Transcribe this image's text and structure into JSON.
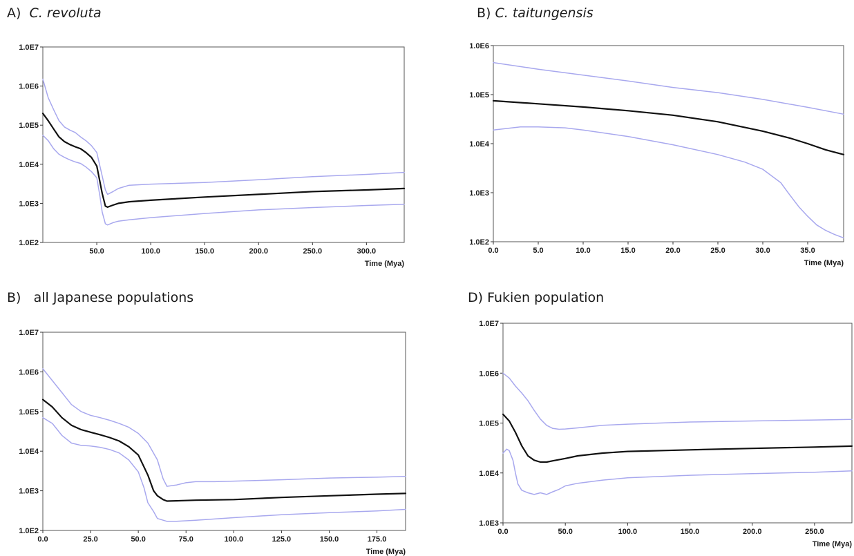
{
  "chart_data": [
    {
      "id": "A",
      "type": "line",
      "title_prefix": "A)",
      "title_species": "C. revoluta",
      "xlabel": "Time (Mya)",
      "ylabel": "",
      "y_scale": "log",
      "xlim": [
        0,
        335
      ],
      "ylim": [
        100,
        10000000
      ],
      "x_ticks": [
        50,
        100,
        150,
        200,
        250,
        300
      ],
      "x_tick_labels": [
        "50.0",
        "100.0",
        "150.0",
        "200.0",
        "250.0",
        "300.0"
      ],
      "y_ticks": [
        100,
        1000,
        10000,
        100000,
        1000000,
        10000000
      ],
      "y_tick_labels": [
        "1.0E2",
        "1.0E3",
        "1.0E4",
        "1.0E5",
        "1.0E6",
        "1.0E7"
      ],
      "grid": false,
      "series": [
        {
          "role": "upper",
          "color": "#a8a8ee",
          "x": [
            0,
            5,
            10,
            15,
            20,
            25,
            30,
            35,
            40,
            45,
            50,
            55,
            58,
            60,
            65,
            70,
            80,
            100,
            150,
            200,
            250,
            300,
            335
          ],
          "y": [
            1500000,
            500000,
            250000,
            130000,
            90000,
            75000,
            65000,
            50000,
            40000,
            30000,
            20000,
            5000,
            2200,
            1700,
            2000,
            2400,
            2900,
            3100,
            3400,
            4000,
            4800,
            5500,
            6200
          ]
        },
        {
          "role": "median",
          "color": "#111111",
          "x": [
            0,
            5,
            10,
            15,
            20,
            25,
            30,
            35,
            40,
            45,
            50,
            53,
            55,
            58,
            60,
            65,
            70,
            80,
            100,
            150,
            200,
            250,
            300,
            335
          ],
          "y": [
            200000,
            130000,
            80000,
            50000,
            38000,
            32000,
            28000,
            25000,
            20000,
            15000,
            9000,
            3500,
            1800,
            850,
            800,
            900,
            1000,
            1100,
            1200,
            1450,
            1700,
            2000,
            2200,
            2400
          ]
        },
        {
          "role": "lower",
          "color": "#a8a8ee",
          "x": [
            0,
            5,
            10,
            15,
            20,
            25,
            30,
            35,
            40,
            45,
            50,
            53,
            55,
            58,
            60,
            65,
            70,
            80,
            100,
            150,
            200,
            250,
            300,
            335
          ],
          "y": [
            55000,
            40000,
            25000,
            18000,
            15000,
            13000,
            11500,
            10500,
            8500,
            6500,
            4500,
            1500,
            600,
            300,
            280,
            320,
            350,
            380,
            430,
            550,
            680,
            780,
            880,
            950
          ]
        }
      ]
    },
    {
      "id": "B1",
      "type": "line",
      "title_prefix": "B)",
      "title_species": "C. taitungensis",
      "xlabel": "Time (Mya)",
      "ylabel": "",
      "y_scale": "log",
      "xlim": [
        0,
        39
      ],
      "ylim": [
        100,
        1000000
      ],
      "x_ticks": [
        0,
        5,
        10,
        15,
        20,
        25,
        30,
        35
      ],
      "x_tick_labels": [
        "0.0",
        "5.0",
        "10.0",
        "15.0",
        "20.0",
        "25.0",
        "30.0",
        "35.0"
      ],
      "y_ticks": [
        100,
        1000,
        10000,
        100000,
        1000000
      ],
      "y_tick_labels": [
        "1.0E2",
        "1.0E3",
        "1.0E4",
        "1.0E5",
        "1.0E6"
      ],
      "grid": false,
      "series": [
        {
          "role": "upper",
          "color": "#a8a8ee",
          "x": [
            0,
            5,
            10,
            15,
            20,
            25,
            30,
            35,
            39
          ],
          "y": [
            450000,
            330000,
            250000,
            190000,
            140000,
            110000,
            80000,
            55000,
            40000
          ]
        },
        {
          "role": "median",
          "color": "#111111",
          "x": [
            0,
            5,
            10,
            15,
            20,
            25,
            30,
            33,
            35,
            37,
            39
          ],
          "y": [
            75000,
            65000,
            56000,
            47000,
            38000,
            28000,
            18000,
            13000,
            10000,
            7500,
            6000
          ]
        },
        {
          "role": "lower",
          "color": "#a8a8ee",
          "x": [
            0,
            3,
            5,
            8,
            10,
            15,
            20,
            25,
            28,
            30,
            32,
            33,
            34,
            35,
            36,
            37,
            38,
            39
          ],
          "y": [
            19000,
            22000,
            22000,
            21000,
            19000,
            14000,
            9500,
            6000,
            4200,
            3000,
            1600,
            900,
            520,
            330,
            220,
            170,
            140,
            120
          ]
        }
      ]
    },
    {
      "id": "B2",
      "type": "line",
      "title_prefix": "B)",
      "title_text": "all Japanese populations",
      "xlabel": "Time (Mya)",
      "ylabel": "",
      "y_scale": "log",
      "xlim": [
        0,
        190
      ],
      "ylim": [
        100,
        10000000
      ],
      "x_ticks": [
        0,
        25,
        50,
        75,
        100,
        125,
        150,
        175
      ],
      "x_tick_labels": [
        "0.0",
        "25.0",
        "50.0",
        "75.0",
        "100.0",
        "125.0",
        "150.0",
        "175.0"
      ],
      "y_ticks": [
        100,
        1000,
        10000,
        100000,
        1000000,
        10000000
      ],
      "y_tick_labels": [
        "1.0E2",
        "1.0E3",
        "1.0E4",
        "1.0E5",
        "1.0E6",
        "1.0E7"
      ],
      "grid": false,
      "series": [
        {
          "role": "upper",
          "color": "#a8a8ee",
          "x": [
            0,
            5,
            10,
            15,
            20,
            25,
            30,
            35,
            40,
            45,
            50,
            55,
            60,
            63,
            65,
            70,
            75,
            80,
            90,
            100,
            125,
            150,
            175,
            190
          ],
          "y": [
            1200000,
            600000,
            300000,
            150000,
            100000,
            80000,
            70000,
            60000,
            50000,
            40000,
            28000,
            16000,
            6000,
            2000,
            1300,
            1400,
            1600,
            1700,
            1700,
            1750,
            1900,
            2100,
            2200,
            2300
          ]
        },
        {
          "role": "median",
          "color": "#111111",
          "x": [
            0,
            5,
            10,
            15,
            20,
            25,
            30,
            35,
            40,
            45,
            50,
            55,
            58,
            60,
            63,
            65,
            70,
            80,
            100,
            125,
            150,
            175,
            190
          ],
          "y": [
            200000,
            130000,
            70000,
            45000,
            35000,
            30000,
            26000,
            22000,
            18000,
            13000,
            8000,
            2500,
            1000,
            750,
            600,
            550,
            560,
            580,
            600,
            680,
            750,
            820,
            860
          ]
        },
        {
          "role": "lower",
          "color": "#a8a8ee",
          "x": [
            0,
            5,
            10,
            15,
            20,
            25,
            30,
            35,
            40,
            45,
            50,
            53,
            55,
            58,
            60,
            65,
            70,
            80,
            100,
            125,
            150,
            175,
            190
          ],
          "y": [
            70000,
            50000,
            25000,
            16000,
            14000,
            13500,
            12500,
            11000,
            9000,
            6000,
            3000,
            1200,
            500,
            300,
            200,
            170,
            170,
            180,
            210,
            250,
            280,
            310,
            340
          ]
        }
      ]
    },
    {
      "id": "D",
      "type": "line",
      "title_prefix": "D)",
      "title_text": "Fukien population",
      "xlabel": "Time (Mya)",
      "ylabel": "",
      "y_scale": "log",
      "xlim": [
        0,
        280
      ],
      "ylim": [
        1000,
        10000000
      ],
      "x_ticks": [
        0,
        50,
        100,
        150,
        200,
        250
      ],
      "x_tick_labels": [
        "0.0",
        "50.0",
        "100.0",
        "150.0",
        "200.0",
        "250.0"
      ],
      "y_ticks": [
        1000,
        10000,
        100000,
        1000000,
        10000000
      ],
      "y_tick_labels": [
        "1.0E3",
        "1.0E4",
        "1.0E5",
        "1.0E6",
        "1.0E7"
      ],
      "grid": false,
      "series": [
        {
          "role": "upper",
          "color": "#a8a8ee",
          "x": [
            0,
            5,
            10,
            15,
            20,
            25,
            30,
            35,
            40,
            45,
            50,
            60,
            80,
            100,
            150,
            200,
            250,
            280
          ],
          "y": [
            1000000,
            800000,
            550000,
            400000,
            280000,
            180000,
            120000,
            90000,
            78000,
            75000,
            76000,
            80000,
            90000,
            95000,
            105000,
            110000,
            115000,
            118000
          ]
        },
        {
          "role": "median",
          "color": "#111111",
          "x": [
            0,
            5,
            10,
            15,
            20,
            25,
            30,
            35,
            40,
            50,
            60,
            80,
            100,
            150,
            200,
            250,
            280
          ],
          "y": [
            150000,
            110000,
            65000,
            35000,
            22000,
            18000,
            16500,
            16500,
            17500,
            19500,
            22000,
            25000,
            27000,
            29000,
            31000,
            33000,
            34500
          ]
        },
        {
          "role": "lower",
          "color": "#a8a8ee",
          "x": [
            0,
            3,
            5,
            8,
            10,
            12,
            15,
            20,
            25,
            30,
            35,
            40,
            45,
            50,
            60,
            80,
            100,
            150,
            200,
            250,
            280
          ],
          "y": [
            25000,
            30000,
            28000,
            18000,
            10000,
            6000,
            4500,
            4000,
            3700,
            4000,
            3700,
            4200,
            4700,
            5500,
            6200,
            7200,
            8000,
            9000,
            9700,
            10300,
            11000
          ]
        }
      ]
    }
  ]
}
